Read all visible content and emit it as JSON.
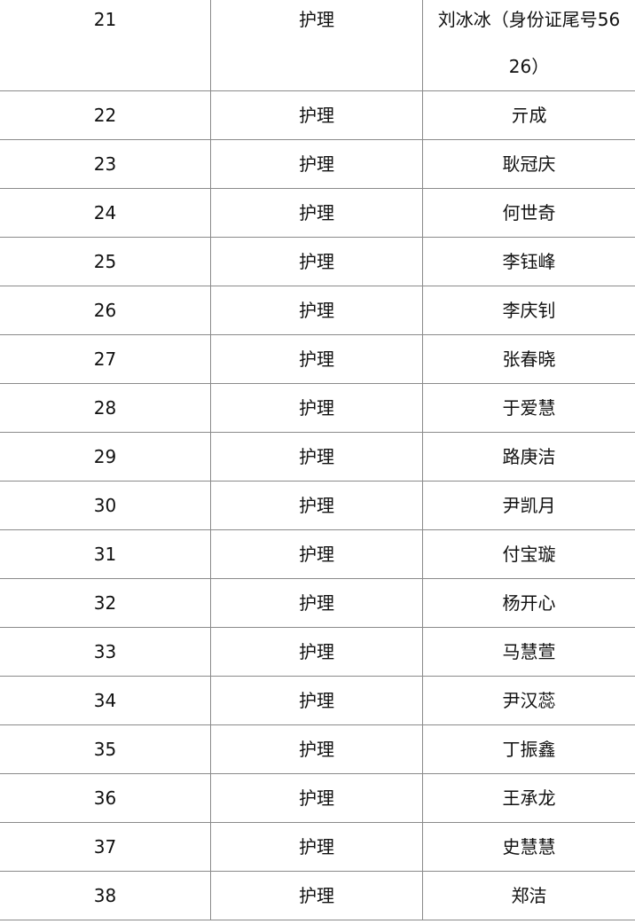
{
  "table": {
    "rows": [
      {
        "no": "21",
        "category": "护理",
        "name": "刘冰冰（身份证尾号5626）"
      },
      {
        "no": "22",
        "category": "护理",
        "name": "亓成"
      },
      {
        "no": "23",
        "category": "护理",
        "name": "耿冠庆"
      },
      {
        "no": "24",
        "category": "护理",
        "name": "何世奇"
      },
      {
        "no": "25",
        "category": "护理",
        "name": "李钰峰"
      },
      {
        "no": "26",
        "category": "护理",
        "name": "李庆钊"
      },
      {
        "no": "27",
        "category": "护理",
        "name": "张春晓"
      },
      {
        "no": "28",
        "category": "护理",
        "name": "于爱慧"
      },
      {
        "no": "29",
        "category": "护理",
        "name": "路庚洁"
      },
      {
        "no": "30",
        "category": "护理",
        "name": "尹凯月"
      },
      {
        "no": "31",
        "category": "护理",
        "name": "付宝璇"
      },
      {
        "no": "32",
        "category": "护理",
        "name": "杨开心"
      },
      {
        "no": "33",
        "category": "护理",
        "name": "马慧萱"
      },
      {
        "no": "34",
        "category": "护理",
        "name": "尹汉蕊"
      },
      {
        "no": "35",
        "category": "护理",
        "name": "丁振鑫"
      },
      {
        "no": "36",
        "category": "护理",
        "name": "王承龙"
      },
      {
        "no": "37",
        "category": "护理",
        "name": "史慧慧"
      },
      {
        "no": "38",
        "category": "护理",
        "name": "郑洁"
      }
    ]
  }
}
